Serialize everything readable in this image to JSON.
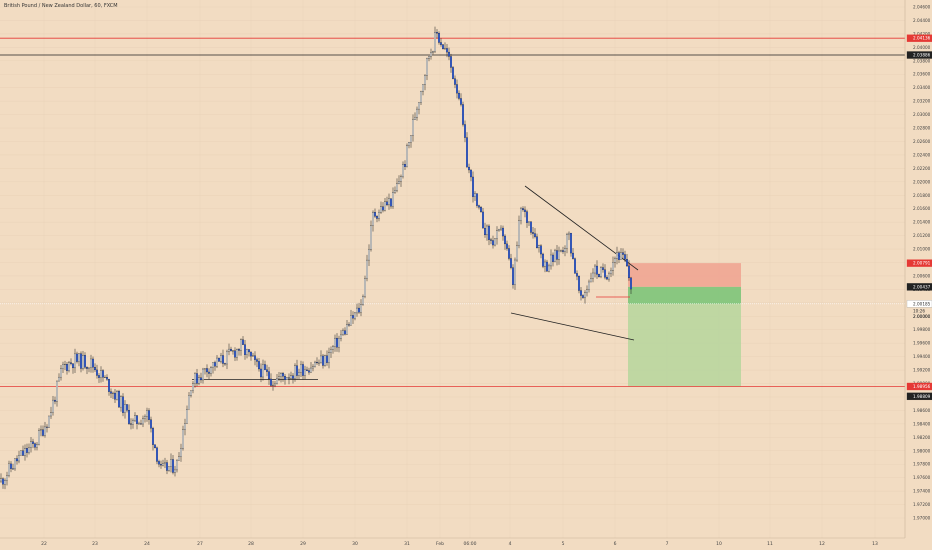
{
  "chart_data": {
    "type": "candlestick",
    "title": "British Pound / New Zealand Dollar, 60, FXCM",
    "x_ticks": [
      "22",
      "23",
      "24",
      "27",
      "28",
      "29",
      "30",
      "31",
      "Feb",
      "06:00",
      "4",
      "5",
      "6",
      "7",
      "10",
      "11",
      "12",
      "13"
    ],
    "y_ticks": [
      "2.04600",
      "2.04400",
      "2.04200",
      "2.04000",
      "2.03800",
      "2.03600",
      "2.03400",
      "2.03200",
      "2.03000",
      "2.02800",
      "2.02600",
      "2.02400",
      "2.02200",
      "2.02000",
      "2.01800",
      "2.01600",
      "2.01400",
      "2.01200",
      "2.01000",
      "2.00800",
      "2.00600",
      "2.00400",
      "2.00200",
      "2.00000",
      "1.99800",
      "1.99600",
      "1.99400",
      "1.99200",
      "1.99000",
      "1.98800",
      "1.98600",
      "1.98400",
      "1.98200",
      "1.98000",
      "1.97800",
      "1.97600",
      "1.97400",
      "1.97200",
      "1.97000"
    ],
    "ylim": [
      1.9695,
      2.047
    ],
    "price_levels": [
      {
        "label": "2.04136",
        "value": 2.04136,
        "color": "#e53935"
      },
      {
        "label": "2.03886",
        "value": 2.03886,
        "color": "#222222"
      },
      {
        "label": "2.00791",
        "value": 2.00791,
        "color": "#e53935"
      },
      {
        "label": "2.00437",
        "value": 2.00437,
        "color": "#222222"
      },
      {
        "label": "2.00185",
        "value": 2.00185,
        "color": "#ffffff"
      },
      {
        "label": "1.98956",
        "value": 1.98956,
        "color": "#e53935"
      },
      {
        "label": "1.98809",
        "value": 1.98809,
        "color": "#222222"
      }
    ],
    "price_extra_labels": [
      {
        "label": "10:26",
        "value": 2.00075
      },
      {
        "label": "2.00000",
        "value": 1.99995
      }
    ],
    "resistance_line_value": 2.03886,
    "support_line_value": 1.9906,
    "stop_line_value": 2.04136,
    "target_line_value": 1.98956,
    "risk_box": {
      "top": 2.00791,
      "bottom": 2.00437
    },
    "reward_box": {
      "top": 2.00437,
      "bottom": 1.98956
    },
    "candle_color_up": "#2962ff",
    "candle_color_down": "#2962ff",
    "anchor_prices": [
      [
        0,
        1.9755
      ],
      [
        18,
        1.979
      ],
      [
        34,
        1.981
      ],
      [
        48,
        1.985
      ],
      [
        62,
        1.9925
      ],
      [
        74,
        1.9935
      ],
      [
        90,
        1.993
      ],
      [
        104,
        1.9905
      ],
      [
        118,
        1.9875
      ],
      [
        132,
        1.984
      ],
      [
        146,
        1.9855
      ],
      [
        160,
        1.977
      ],
      [
        176,
        1.978
      ],
      [
        190,
        1.99
      ],
      [
        208,
        1.9925
      ],
      [
        222,
        1.9935
      ],
      [
        240,
        1.9955
      ],
      [
        256,
        1.9925
      ],
      [
        272,
        1.9905
      ],
      [
        290,
        1.9915
      ],
      [
        306,
        1.9925
      ],
      [
        324,
        1.9935
      ],
      [
        342,
        1.9975
      ],
      [
        360,
        2.0015
      ],
      [
        372,
        2.015
      ],
      [
        392,
        2.0175
      ],
      [
        404,
        2.023
      ],
      [
        414,
        2.03
      ],
      [
        428,
        2.039
      ],
      [
        436,
        2.042
      ],
      [
        446,
        2.039
      ],
      [
        458,
        2.033
      ],
      [
        466,
        2.023
      ],
      [
        476,
        2.016
      ],
      [
        490,
        2.011
      ],
      [
        502,
        2.0125
      ],
      [
        512,
        2.005
      ],
      [
        520,
        2.016
      ],
      [
        532,
        2.013
      ],
      [
        544,
        2.0075
      ],
      [
        556,
        2.009
      ],
      [
        568,
        2.012
      ],
      [
        580,
        2.002
      ],
      [
        592,
        2.007
      ],
      [
        604,
        2.006
      ],
      [
        616,
        2.0095
      ],
      [
        624,
        2.008
      ],
      [
        632,
        2.0035
      ]
    ]
  }
}
